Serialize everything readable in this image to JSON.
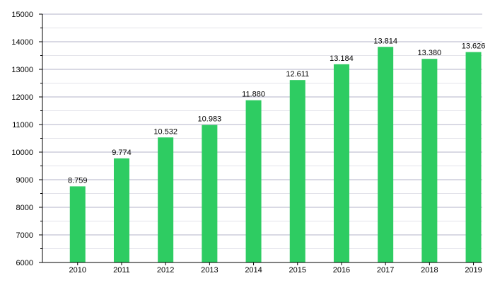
{
  "chart_data": {
    "type": "bar",
    "title": "",
    "xlabel": "",
    "ylabel": "",
    "categories": [
      "2010",
      "2011",
      "2012",
      "2013",
      "2014",
      "2015",
      "2016",
      "2017",
      "2018",
      "2019"
    ],
    "values": [
      8759,
      9774,
      10532,
      10983,
      11880,
      12611,
      13184,
      13814,
      13380,
      13626
    ],
    "value_labels": [
      "8.759",
      "9.774",
      "10.532",
      "10.983",
      "11.880",
      "12.611",
      "13.184",
      "13.814",
      "13.380",
      "13.626"
    ],
    "ylim": [
      6000,
      15000
    ],
    "yticks": [
      6000,
      7000,
      8000,
      9000,
      10000,
      11000,
      12000,
      13000,
      14000,
      15000
    ],
    "grid": true,
    "legend": "none",
    "colors": {
      "bar": "#2ecc62",
      "major_grid": "#b3b3c8",
      "minor_grid": "#e3e3ea",
      "axis": "#000000"
    }
  }
}
